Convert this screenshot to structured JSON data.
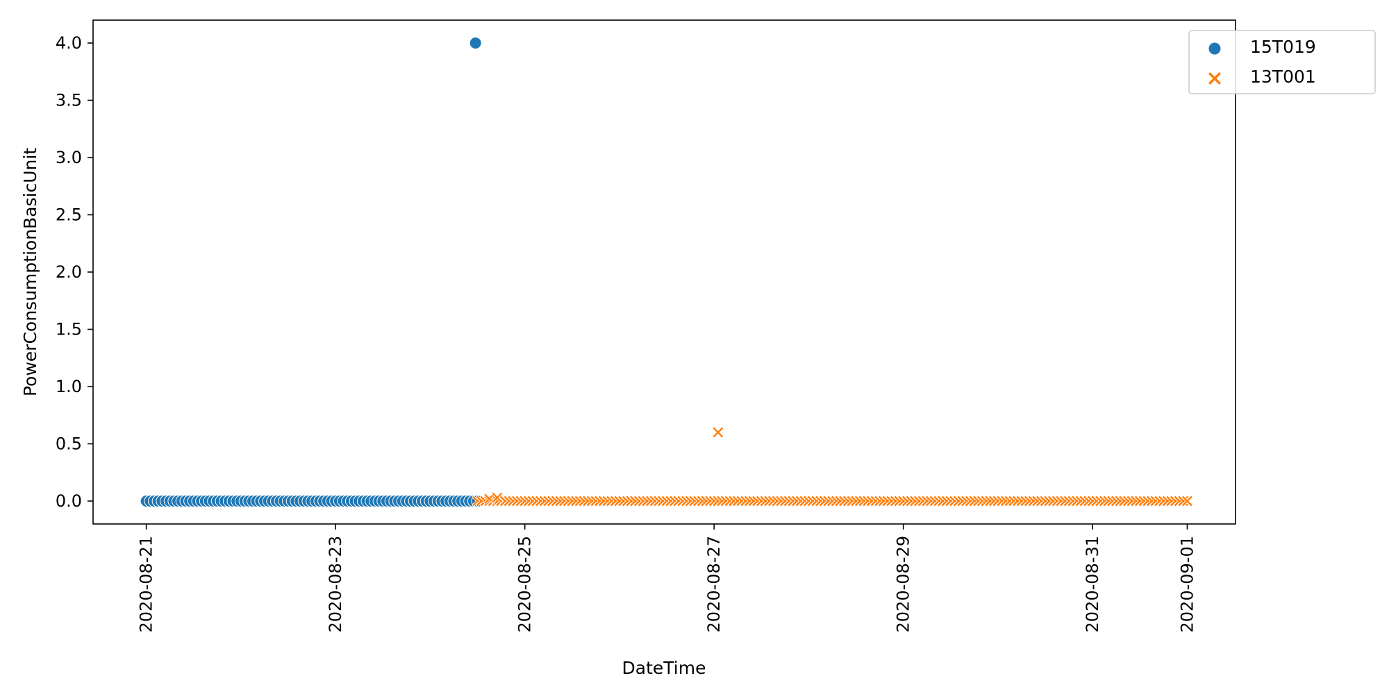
{
  "chart_data": {
    "type": "scatter",
    "title": "",
    "xlabel": "DateTime",
    "ylabel": "PowerConsumptionBasicUnit",
    "x_axis_type": "date",
    "xlim": [
      "2020-08-20T10:30",
      "2020-09-01T12:15"
    ],
    "ylim": [
      -0.2,
      4.2
    ],
    "x_ticks": [
      "2020-08-21",
      "2020-08-23",
      "2020-08-25",
      "2020-08-27",
      "2020-08-29",
      "2020-08-31",
      "2020-09-01"
    ],
    "y_ticks": [
      "0.0",
      "0.5",
      "1.0",
      "1.5",
      "2.0",
      "2.5",
      "3.0",
      "3.5",
      "4.0"
    ],
    "x_tick_rotation": "vertical",
    "grid": false,
    "legend_position": "top-right",
    "series": [
      {
        "name": "15T019",
        "marker": "circle",
        "color": "#1f77b4",
        "regular_run": {
          "start": "2020-08-21T00:00",
          "end": "2020-08-24T11:00",
          "step_hours": 1,
          "value": 0.0
        },
        "points": [
          {
            "x": "2020-08-24T11:30",
            "y": 4.0
          },
          {
            "x": "2020-08-24T12:00",
            "y": 0.0
          }
        ]
      },
      {
        "name": "13T001",
        "marker": "x",
        "color": "#ff7f0e",
        "regular_run": {
          "start": "2020-08-24T12:00",
          "end": "2020-09-01T00:00",
          "step_hours": 1,
          "value": 0.0
        },
        "points": [
          {
            "x": "2020-08-24T15:00",
            "y": 0.02
          },
          {
            "x": "2020-08-24T17:00",
            "y": 0.03
          },
          {
            "x": "2020-08-27T01:00",
            "y": 0.6
          }
        ]
      }
    ]
  }
}
